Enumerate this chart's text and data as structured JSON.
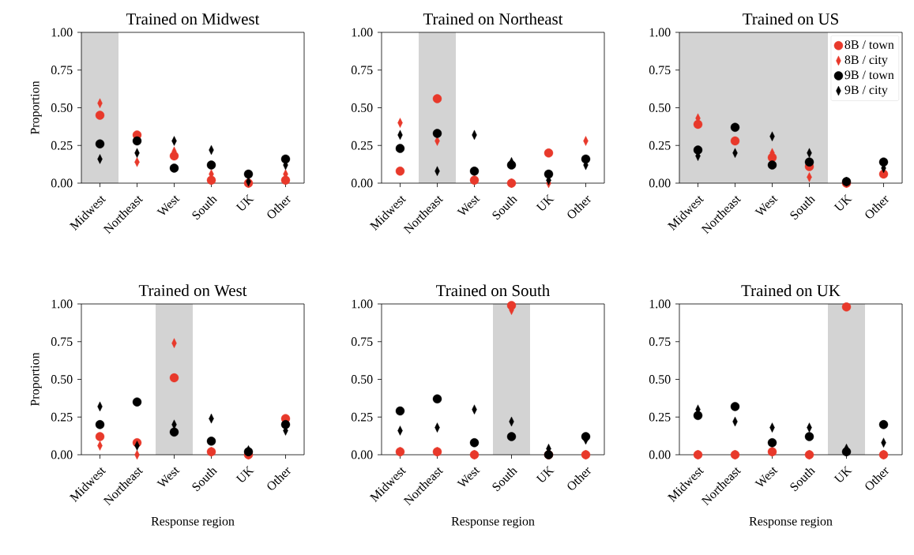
{
  "chart_data": [
    {
      "type": "scatter",
      "title": "Trained on Midwest",
      "ylabel": "Proportion",
      "categories": [
        "Midwest",
        "Northeast",
        "West",
        "South",
        "UK",
        "Other"
      ],
      "series": [
        {
          "color": "#e8392b",
          "marker": "circle",
          "values": [
            0.45,
            0.32,
            0.18,
            0.02,
            0.0,
            0.02
          ]
        },
        {
          "color": "#e8392b",
          "marker": "diamond",
          "values": [
            0.53,
            0.14,
            0.21,
            0.06,
            0.0,
            0.06
          ]
        },
        {
          "color": "#000000",
          "marker": "circle",
          "values": [
            0.26,
            0.28,
            0.1,
            0.12,
            0.06,
            0.16
          ]
        },
        {
          "color": "#000000",
          "marker": "diamond",
          "values": [
            0.16,
            0.2,
            0.28,
            0.22,
            0.01,
            0.12
          ]
        }
      ],
      "ylim": [
        0,
        1
      ],
      "yticks": [
        {
          "value": 0,
          "label": "0.00"
        },
        {
          "value": 0.25,
          "label": "0.25"
        },
        {
          "value": 0.5,
          "label": "0.50"
        },
        {
          "value": 0.75,
          "label": "0.75"
        },
        {
          "value": 1,
          "label": "1.00"
        }
      ],
      "bands": [
        {
          "axis": "x",
          "from": "Midwest",
          "to": "Midwest",
          "color": "#d3d3d3"
        }
      ]
    },
    {
      "type": "scatter",
      "title": "Trained on Northeast",
      "categories": [
        "Midwest",
        "Northeast",
        "West",
        "South",
        "UK",
        "Other"
      ],
      "series": [
        {
          "color": "#e8392b",
          "marker": "circle",
          "values": [
            0.08,
            0.56,
            0.02,
            0.0,
            0.2,
            null
          ]
        },
        {
          "color": "#e8392b",
          "marker": "diamond",
          "values": [
            0.4,
            0.28,
            0.02,
            0.0,
            0.0,
            0.28
          ]
        },
        {
          "color": "#000000",
          "marker": "circle",
          "values": [
            0.23,
            0.33,
            0.08,
            0.12,
            0.06,
            0.16
          ]
        },
        {
          "color": "#000000",
          "marker": "diamond",
          "values": [
            0.32,
            0.08,
            0.32,
            0.14,
            0.02,
            0.12
          ]
        }
      ],
      "ylim": [
        0,
        1
      ],
      "yticks": [
        {
          "value": 0,
          "label": "0.00"
        },
        {
          "value": 0.25,
          "label": "0.25"
        },
        {
          "value": 0.5,
          "label": "0.50"
        },
        {
          "value": 0.75,
          "label": "0.75"
        },
        {
          "value": 1,
          "label": "1.00"
        }
      ],
      "bands": [
        {
          "axis": "x",
          "from": "Northeast",
          "to": "Northeast",
          "color": "#d3d3d3"
        }
      ]
    },
    {
      "type": "scatter",
      "title": "Trained on US",
      "categories": [
        "Midwest",
        "Northeast",
        "West",
        "South",
        "UK",
        "Other"
      ],
      "series": [
        {
          "name": "8B / town",
          "color": "#e8392b",
          "marker": "circle",
          "values": [
            0.39,
            0.28,
            0.17,
            0.11,
            0.0,
            0.06
          ]
        },
        {
          "name": "8B / city",
          "color": "#e8392b",
          "marker": "diamond",
          "values": [
            0.43,
            null,
            0.2,
            0.04,
            0.0,
            null
          ]
        },
        {
          "name": "9B / town",
          "color": "#000000",
          "marker": "circle",
          "values": [
            0.22,
            0.37,
            0.12,
            0.14,
            0.01,
            0.14
          ]
        },
        {
          "name": "9B / city",
          "color": "#000000",
          "marker": "diamond",
          "values": [
            0.18,
            0.2,
            0.31,
            0.2,
            0.01,
            0.1
          ]
        }
      ],
      "ylim": [
        0,
        1
      ],
      "yticks": [
        {
          "value": 0,
          "label": "0.00"
        },
        {
          "value": 0.25,
          "label": "0.25"
        },
        {
          "value": 0.5,
          "label": "0.50"
        },
        {
          "value": 0.75,
          "label": "0.75"
        },
        {
          "value": 1,
          "label": "1.00"
        }
      ],
      "bands": [
        {
          "axis": "x",
          "from": "Midwest",
          "to": "South",
          "color": "#d3d3d3"
        }
      ],
      "legend": "top right"
    },
    {
      "type": "scatter",
      "title": "Trained on West",
      "ylabel": "Proportion",
      "xlabel": "Response region",
      "categories": [
        "Midwest",
        "Northeast",
        "West",
        "South",
        "UK",
        "Other"
      ],
      "series": [
        {
          "color": "#e8392b",
          "marker": "circle",
          "values": [
            0.12,
            0.08,
            0.51,
            0.02,
            0.0,
            0.24
          ]
        },
        {
          "color": "#e8392b",
          "marker": "diamond",
          "values": [
            0.06,
            0.0,
            0.74,
            0.02,
            0.0,
            null
          ]
        },
        {
          "color": "#000000",
          "marker": "circle",
          "values": [
            0.2,
            0.35,
            0.15,
            0.09,
            0.02,
            0.2
          ]
        },
        {
          "color": "#000000",
          "marker": "diamond",
          "values": [
            0.32,
            0.06,
            0.2,
            0.24,
            0.03,
            0.16
          ]
        }
      ],
      "ylim": [
        0,
        1
      ],
      "yticks": [
        {
          "value": 0,
          "label": "0.00"
        },
        {
          "value": 0.25,
          "label": "0.25"
        },
        {
          "value": 0.5,
          "label": "0.50"
        },
        {
          "value": 0.75,
          "label": "0.75"
        },
        {
          "value": 1,
          "label": "1.00"
        }
      ],
      "bands": [
        {
          "axis": "x",
          "from": "West",
          "to": "West",
          "color": "#d3d3d3"
        }
      ]
    },
    {
      "type": "scatter",
      "title": "Trained on South",
      "xlabel": "Response region",
      "categories": [
        "Midwest",
        "Northeast",
        "West",
        "South",
        "UK",
        "Other"
      ],
      "series": [
        {
          "color": "#e8392b",
          "marker": "circle",
          "values": [
            0.02,
            0.02,
            0.0,
            0.99,
            0.0,
            0.0
          ]
        },
        {
          "color": "#e8392b",
          "marker": "diamond",
          "values": [
            0.02,
            0.02,
            0.0,
            0.96,
            null,
            0.0
          ]
        },
        {
          "color": "#000000",
          "marker": "circle",
          "values": [
            0.29,
            0.37,
            0.08,
            0.12,
            0.0,
            0.12
          ]
        },
        {
          "color": "#000000",
          "marker": "diamond",
          "values": [
            0.16,
            0.18,
            0.3,
            0.22,
            0.04,
            0.1
          ]
        }
      ],
      "ylim": [
        0,
        1
      ],
      "yticks": [
        {
          "value": 0,
          "label": "0.00"
        },
        {
          "value": 0.25,
          "label": "0.25"
        },
        {
          "value": 0.5,
          "label": "0.50"
        },
        {
          "value": 0.75,
          "label": "0.75"
        },
        {
          "value": 1,
          "label": "1.00"
        }
      ],
      "bands": [
        {
          "axis": "x",
          "from": "South",
          "to": "South",
          "color": "#d3d3d3"
        }
      ]
    },
    {
      "type": "scatter",
      "title": "Trained on UK",
      "xlabel": "Response region",
      "categories": [
        "Midwest",
        "Northeast",
        "West",
        "South",
        "UK",
        "Other"
      ],
      "series": [
        {
          "color": "#e8392b",
          "marker": "circle",
          "values": [
            0.0,
            0.0,
            0.02,
            0.0,
            0.98,
            0.0
          ]
        },
        {
          "color": "#e8392b",
          "marker": "diamond",
          "values": [
            0.0,
            0.0,
            0.02,
            0.0,
            null,
            0.0
          ]
        },
        {
          "color": "#000000",
          "marker": "circle",
          "values": [
            0.26,
            0.32,
            0.08,
            0.12,
            0.02,
            0.2
          ]
        },
        {
          "color": "#000000",
          "marker": "diamond",
          "values": [
            0.3,
            0.22,
            0.18,
            0.18,
            0.04,
            0.08
          ]
        }
      ],
      "ylim": [
        0,
        1
      ],
      "yticks": [
        {
          "value": 0,
          "label": "0.00"
        },
        {
          "value": 0.25,
          "label": "0.25"
        },
        {
          "value": 0.5,
          "label": "0.50"
        },
        {
          "value": 0.75,
          "label": "0.75"
        },
        {
          "value": 1,
          "label": "1.00"
        }
      ],
      "bands": [
        {
          "axis": "x",
          "from": "UK",
          "to": "UK",
          "color": "#d3d3d3"
        }
      ]
    }
  ]
}
